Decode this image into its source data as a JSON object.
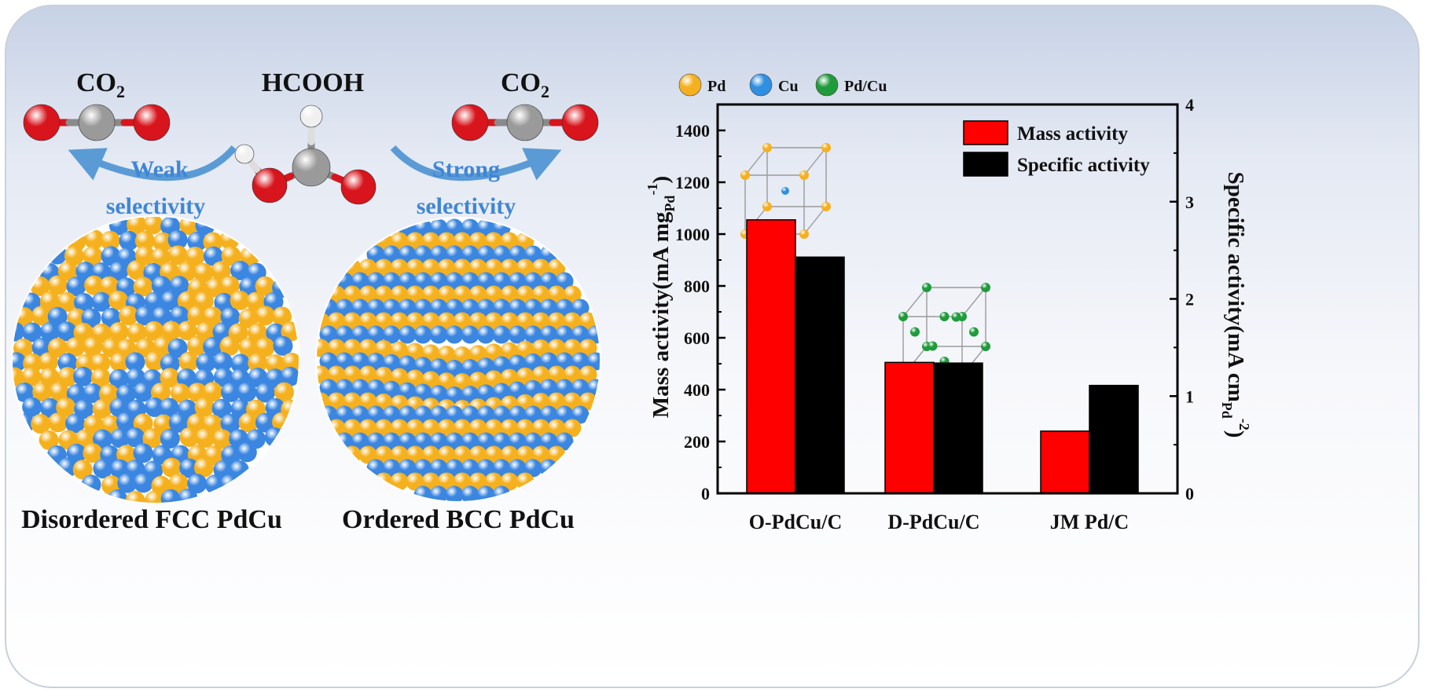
{
  "left_panel": {
    "co2_left": {
      "base": "CO",
      "sub": "2"
    },
    "hcooh": "HCOOH",
    "co2_right": {
      "base": "CO",
      "sub": "2"
    },
    "weak_line1": "Weak",
    "weak_line2": "selectivity",
    "strong_line1": "Strong",
    "strong_line2": "selectivity",
    "caption_left": "Disordered FCC PdCu",
    "caption_right": "Ordered BCC PdCu"
  },
  "atom_legend": [
    {
      "label": "Pd",
      "color": "#f5b01e"
    },
    {
      "label": "Cu",
      "color": "#2f8fe0"
    },
    {
      "label": "Pd/Cu",
      "color": "#1e9b3a"
    }
  ],
  "colors": {
    "pd": "#f5b01e",
    "cu": "#3a86e0",
    "oxygen": "#d8141c",
    "carbon": "#9a9a9a",
    "hydrogen": "#f0f0f0",
    "arrow": "#5b9bd5",
    "selectivity_text": "#3f86d6"
  },
  "chart_data": {
    "type": "bar",
    "categories": [
      "O-PdCu/C",
      "D-PdCu/C",
      "JM Pd/C"
    ],
    "series": [
      {
        "name": "Mass activity",
        "axis": "left",
        "color": "#ff0000",
        "values": [
          1055,
          505,
          240
        ]
      },
      {
        "name": "Specific activity",
        "axis": "right",
        "color": "#000000",
        "values": [
          2.43,
          1.34,
          1.11
        ]
      }
    ],
    "ylabel_left": {
      "base": "Mass activity(mA mg",
      "sub": "Pd",
      "sup": "-1",
      "close": ")"
    },
    "ylabel_right": {
      "base": "Specific activity(mA cm",
      "sub": "Pd",
      "sup": "-2",
      "close": ")"
    },
    "ylim_left": [
      0,
      1500
    ],
    "yticks_left": [
      0,
      200,
      400,
      600,
      800,
      1000,
      1200,
      1400
    ],
    "ylim_right": [
      0,
      4
    ],
    "yticks_right": [
      0,
      1,
      2,
      3,
      4
    ],
    "legend_position": "top-right",
    "grid": false
  }
}
